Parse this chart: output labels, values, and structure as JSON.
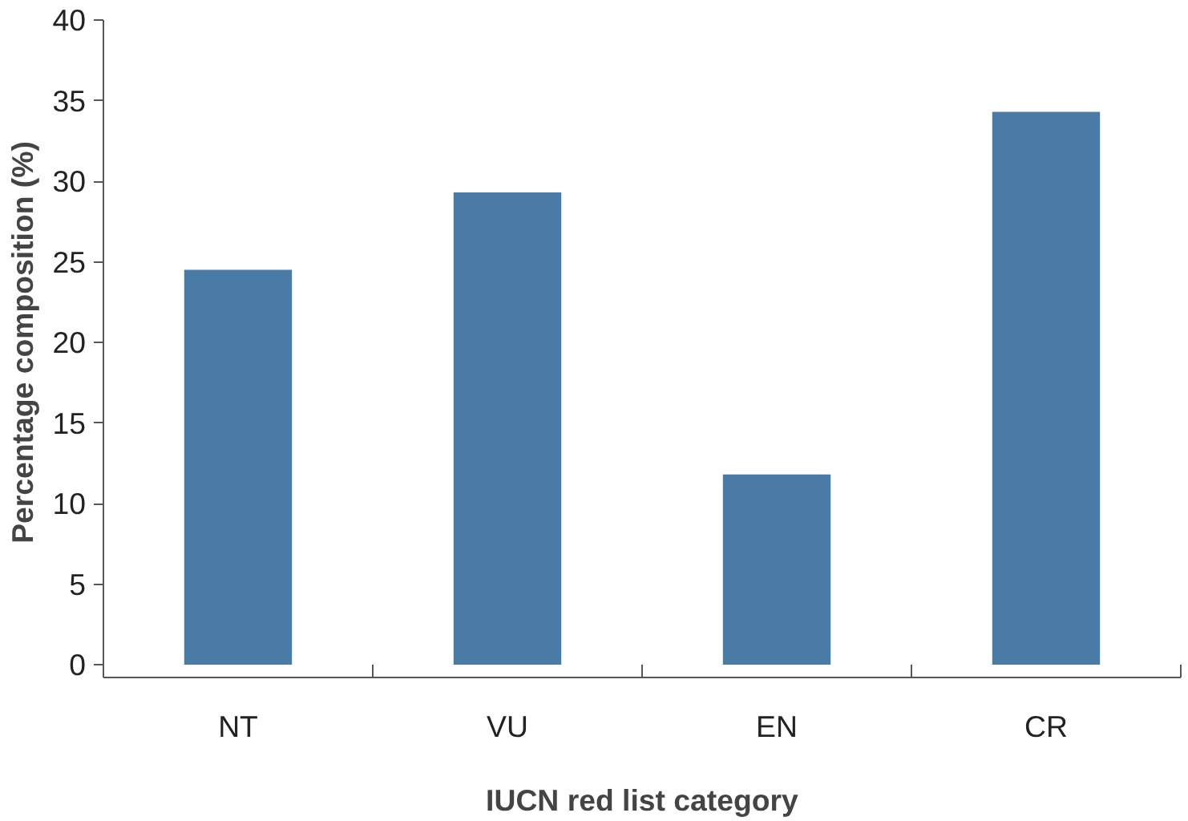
{
  "chart_data": {
    "type": "bar",
    "xlabel": "IUCN red list category",
    "ylabel": "Percentage composition (%)",
    "categories": [
      "NT",
      "VU",
      "EN",
      "CR"
    ],
    "values": [
      24.5,
      29.3,
      11.8,
      34.3
    ],
    "color": "#4a7ba7",
    "ylim": [
      0,
      40
    ],
    "yticks": [
      0,
      5,
      10,
      15,
      20,
      25,
      30,
      35,
      40
    ],
    "grid": false
  }
}
